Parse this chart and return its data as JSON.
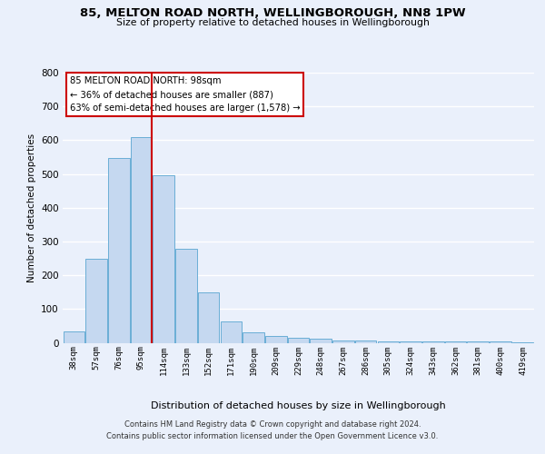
{
  "title": "85, MELTON ROAD NORTH, WELLINGBOROUGH, NN8 1PW",
  "subtitle": "Size of property relative to detached houses in Wellingborough",
  "xlabel": "Distribution of detached houses by size in Wellingborough",
  "ylabel": "Number of detached properties",
  "categories": [
    "38sqm",
    "57sqm",
    "76sqm",
    "95sqm",
    "114sqm",
    "133sqm",
    "152sqm",
    "171sqm",
    "190sqm",
    "209sqm",
    "229sqm",
    "248sqm",
    "267sqm",
    "286sqm",
    "305sqm",
    "324sqm",
    "343sqm",
    "362sqm",
    "381sqm",
    "400sqm",
    "419sqm"
  ],
  "values": [
    33,
    248,
    548,
    608,
    495,
    278,
    148,
    62,
    32,
    20,
    14,
    12,
    8,
    7,
    5,
    5,
    5,
    5,
    4,
    3,
    2
  ],
  "bar_color": "#c5d8f0",
  "bar_edge_color": "#6aaed6",
  "annotation_text": "85 MELTON ROAD NORTH: 98sqm\n← 36% of detached houses are smaller (887)\n63% of semi-detached houses are larger (1,578) →",
  "annotation_box_color": "#ffffff",
  "annotation_box_edge": "#cc0000",
  "red_line_color": "#cc0000",
  "footer1": "Contains HM Land Registry data © Crown copyright and database right 2024.",
  "footer2": "Contains public sector information licensed under the Open Government Licence v3.0.",
  "background_color": "#eaf0fb",
  "axes_background": "#eaf0fb",
  "grid_color": "#ffffff",
  "ylim": [
    0,
    800
  ],
  "yticks": [
    0,
    100,
    200,
    300,
    400,
    500,
    600,
    700,
    800
  ]
}
